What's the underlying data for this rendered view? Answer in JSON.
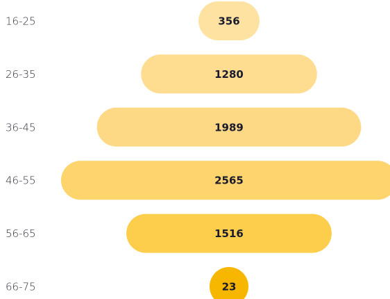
{
  "chart_data": {
    "type": "funnel",
    "categories": [
      "16-25",
      "26-35",
      "36-45",
      "46-55",
      "56-65",
      "66-75"
    ],
    "values": [
      356,
      1280,
      1989,
      2565,
      1516,
      23
    ],
    "colors": [
      "#fee2a1",
      "#fedd91",
      "#fed985",
      "#fed46c",
      "#fdcd4c",
      "#f7b700"
    ]
  }
}
